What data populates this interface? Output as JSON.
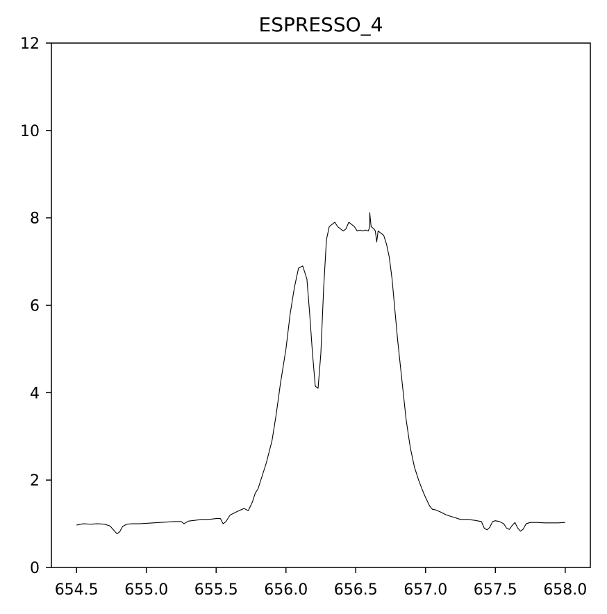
{
  "chart_data": {
    "type": "line",
    "title": "ESPRESSO_4",
    "xlabel": "",
    "ylabel": "",
    "xlim": [
      654.32,
      658.18
    ],
    "ylim": [
      0,
      12
    ],
    "grid": false,
    "legend": "none",
    "xticks": [
      654.5,
      655.0,
      655.5,
      656.0,
      656.5,
      657.0,
      657.5,
      658.0
    ],
    "xtick_labels": [
      "654.5",
      "655.0",
      "655.5",
      "656.0",
      "656.5",
      "657.0",
      "657.5",
      "658.0"
    ],
    "yticks": [
      0,
      2,
      4,
      6,
      8,
      10,
      12
    ],
    "ytick_labels": [
      "0",
      "2",
      "4",
      "6",
      "8",
      "10",
      "12"
    ],
    "series": [
      {
        "name": "ESPRESSO_4",
        "color": "#000000",
        "x": [
          654.5,
          654.55,
          654.6,
          654.65,
          654.7,
          654.74,
          654.77,
          654.79,
          654.81,
          654.83,
          654.86,
          654.9,
          654.95,
          655.0,
          655.05,
          655.1,
          655.15,
          655.2,
          655.25,
          655.27,
          655.3,
          655.35,
          655.4,
          655.45,
          655.5,
          655.53,
          655.55,
          655.57,
          655.6,
          655.65,
          655.7,
          655.73,
          655.76,
          655.78,
          655.8,
          655.83,
          655.86,
          655.9,
          655.93,
          655.96,
          656.0,
          656.03,
          656.06,
          656.09,
          656.12,
          656.15,
          656.17,
          656.19,
          656.21,
          656.23,
          656.25,
          656.27,
          656.29,
          656.31,
          656.33,
          656.35,
          656.37,
          656.39,
          656.41,
          656.43,
          656.45,
          656.47,
          656.49,
          656.51,
          656.53,
          656.55,
          656.57,
          656.59,
          656.6,
          656.6,
          656.61,
          656.63,
          656.64,
          656.65,
          656.66,
          656.68,
          656.7,
          656.72,
          656.74,
          656.76,
          656.78,
          656.8,
          656.83,
          656.86,
          656.89,
          656.92,
          656.95,
          656.98,
          657.0,
          657.03,
          657.05,
          657.07,
          657.1,
          657.15,
          657.2,
          657.25,
          657.3,
          657.35,
          657.4,
          657.42,
          657.44,
          657.46,
          657.48,
          657.5,
          657.53,
          657.56,
          657.58,
          657.6,
          657.62,
          657.64,
          657.66,
          657.68,
          657.7,
          657.72,
          657.75,
          657.8,
          657.85,
          657.9,
          657.95,
          658.0
        ],
        "y": [
          0.97,
          1.0,
          0.99,
          1.0,
          0.99,
          0.95,
          0.84,
          0.77,
          0.82,
          0.94,
          0.99,
          1.0,
          1.0,
          1.01,
          1.02,
          1.03,
          1.04,
          1.05,
          1.05,
          1.0,
          1.06,
          1.08,
          1.1,
          1.1,
          1.12,
          1.12,
          1.0,
          1.05,
          1.2,
          1.28,
          1.35,
          1.3,
          1.5,
          1.7,
          1.8,
          2.1,
          2.4,
          2.9,
          3.5,
          4.2,
          5.0,
          5.8,
          6.4,
          6.85,
          6.9,
          6.6,
          5.8,
          4.9,
          4.15,
          4.1,
          4.9,
          6.4,
          7.5,
          7.8,
          7.85,
          7.9,
          7.8,
          7.75,
          7.7,
          7.75,
          7.9,
          7.85,
          7.8,
          7.7,
          7.72,
          7.7,
          7.72,
          7.7,
          7.8,
          8.12,
          7.8,
          7.75,
          7.7,
          7.45,
          7.7,
          7.65,
          7.6,
          7.4,
          7.1,
          6.6,
          5.9,
          5.2,
          4.3,
          3.4,
          2.75,
          2.3,
          2.0,
          1.75,
          1.6,
          1.4,
          1.33,
          1.32,
          1.28,
          1.2,
          1.15,
          1.1,
          1.1,
          1.08,
          1.05,
          0.9,
          0.86,
          0.92,
          1.05,
          1.07,
          1.05,
          1.0,
          0.9,
          0.87,
          0.96,
          1.03,
          0.9,
          0.83,
          0.88,
          1.0,
          1.03,
          1.03,
          1.02,
          1.02,
          1.02,
          1.03
        ]
      }
    ]
  }
}
